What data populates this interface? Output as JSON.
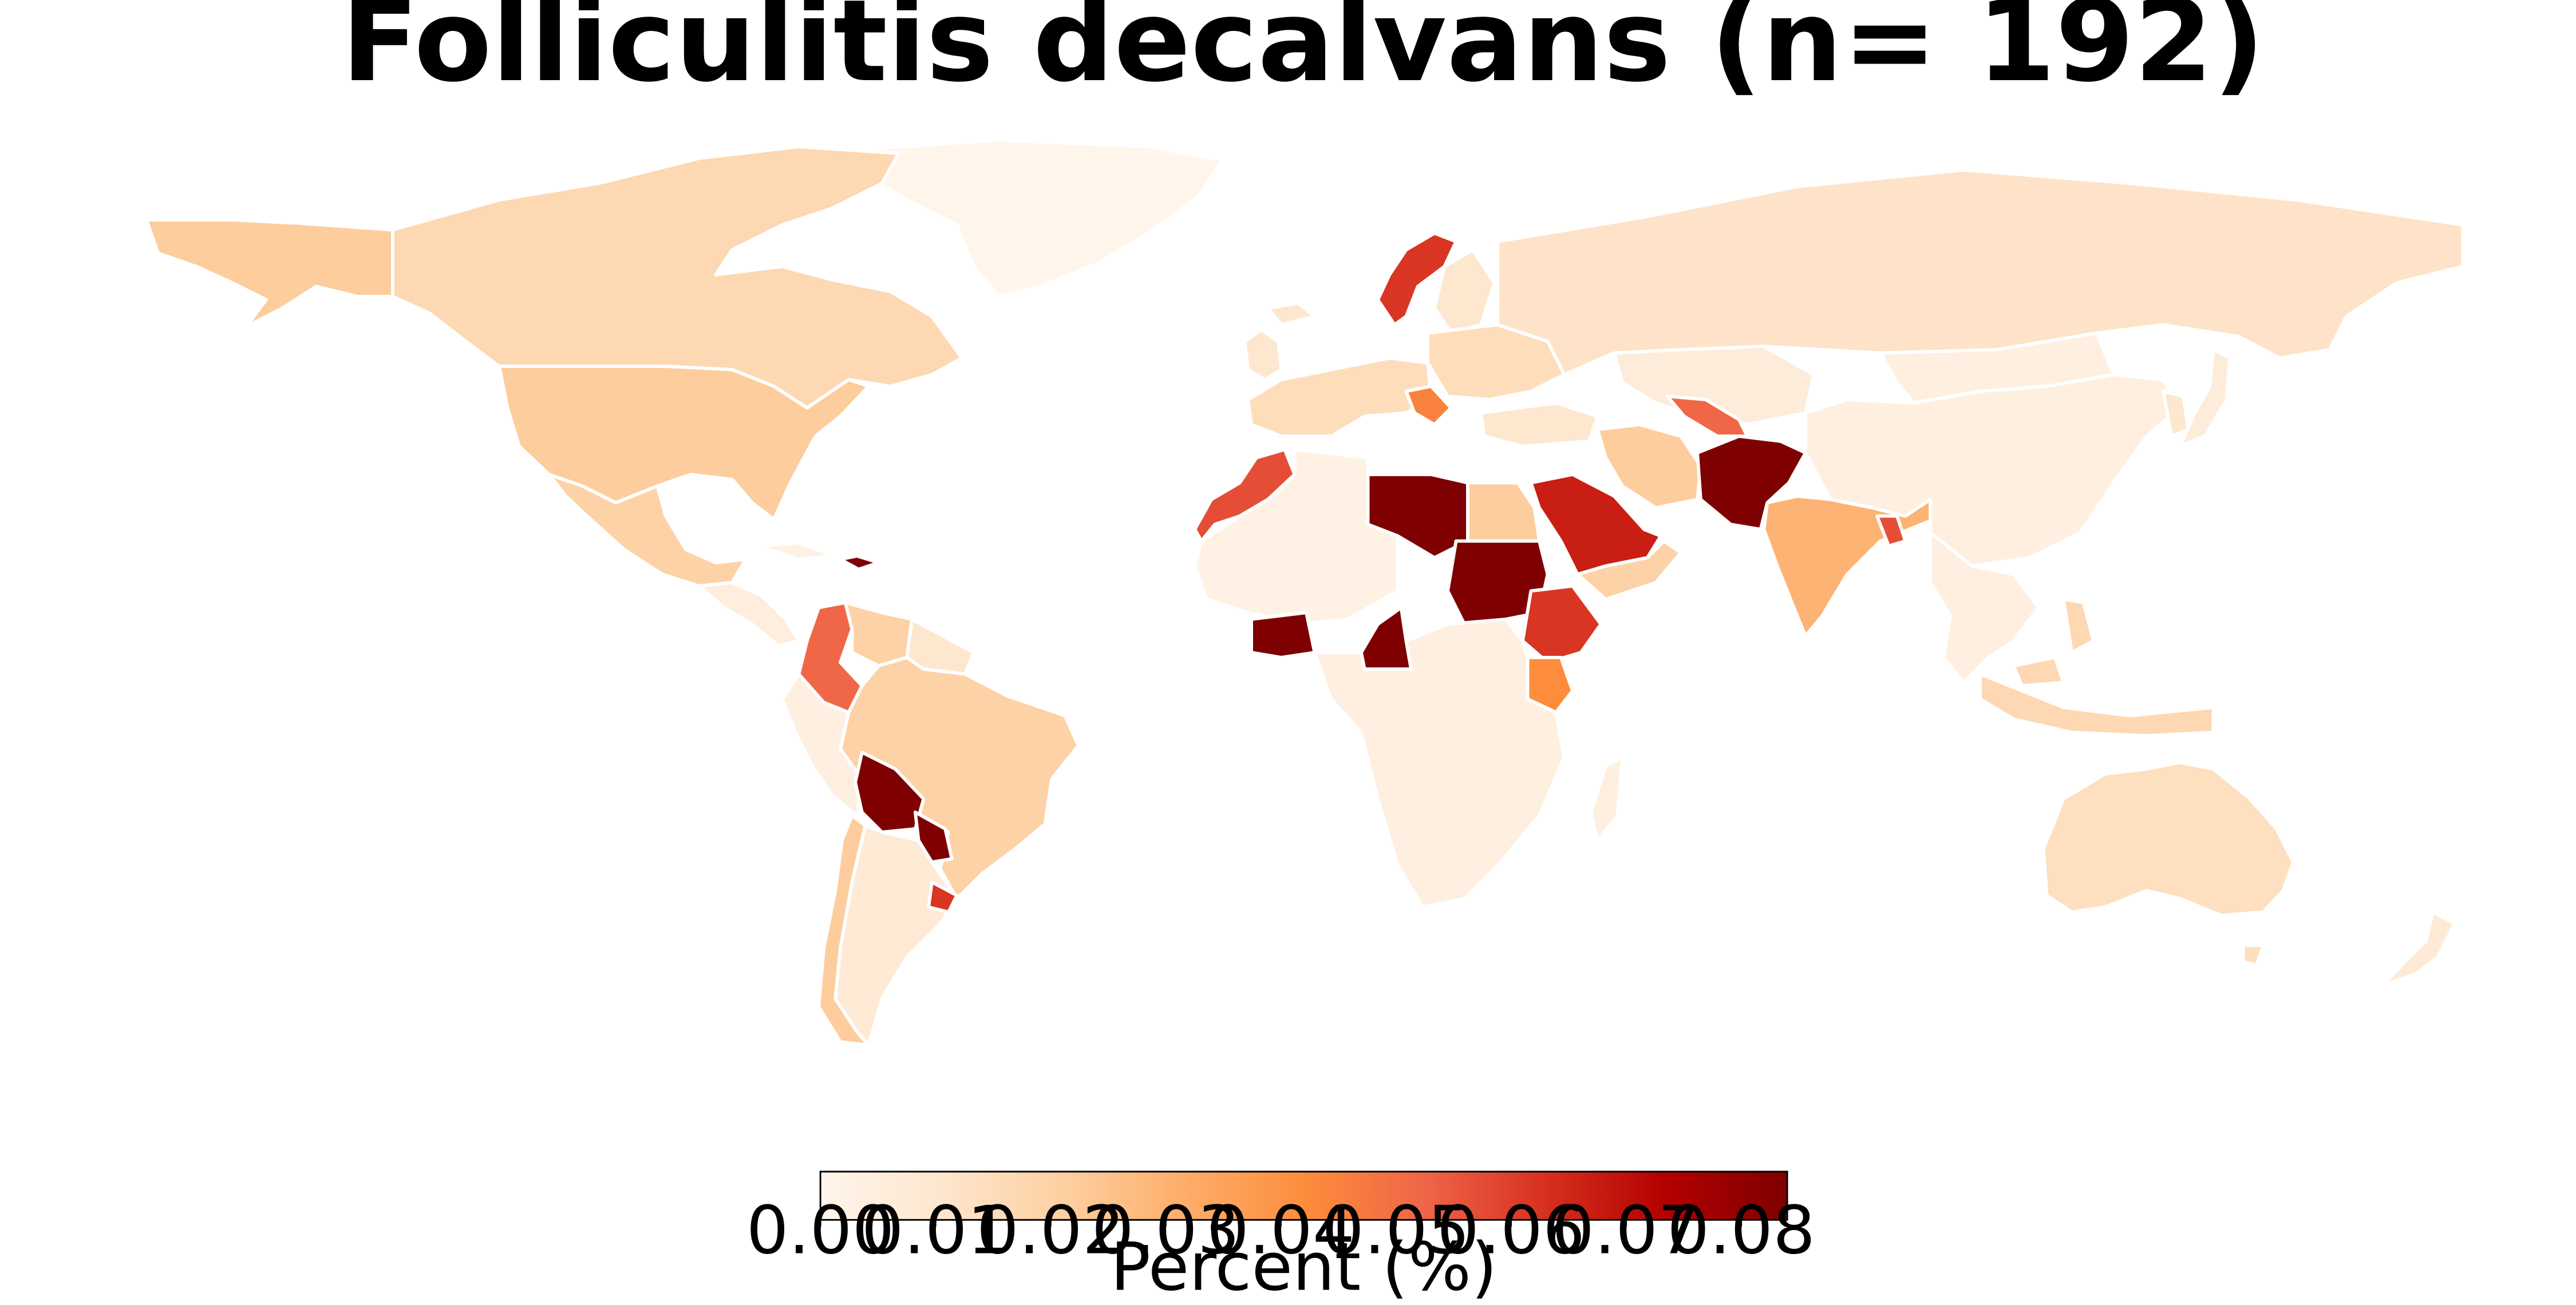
{
  "title": "Folliculitis decalvans (n= 192)",
  "colorbar": {
    "label": "Percent (%)",
    "min": 0,
    "max": 0.084,
    "ticks": [
      "0.00",
      "0.01",
      "0.02",
      "0.03",
      "0.04",
      "0.05",
      "0.06",
      "0.07",
      "0.08"
    ],
    "tick_values": [
      0,
      0.01,
      0.02,
      0.03,
      0.04,
      0.05,
      0.06,
      0.07,
      0.08
    ],
    "colormap": [
      "#fff5eb",
      "#fee6ce",
      "#fdd0a2",
      "#fdae6b",
      "#fd8d3c",
      "#f16913",
      "#d94801",
      "#b30000",
      "#7f0000"
    ],
    "colormap_name": "OrRd-like (white → dark red)"
  },
  "chart_data": {
    "type": "choropleth",
    "title": "Folliculitis decalvans (n= 192)",
    "value_label": "Percent (%)",
    "range": [
      0,
      0.084
    ],
    "regions": [
      {
        "name": "Greenland",
        "value": 0.0
      },
      {
        "name": "Canada",
        "value": 0.017
      },
      {
        "name": "Alaska",
        "value": 0.022
      },
      {
        "name": "United States",
        "value": 0.022
      },
      {
        "name": "Mexico",
        "value": 0.02
      },
      {
        "name": "Central America",
        "value": 0.005
      },
      {
        "name": "Cuba",
        "value": 0.002
      },
      {
        "name": "Haiti / Dominican Republic",
        "value": 0.084
      },
      {
        "name": "Colombia",
        "value": 0.052
      },
      {
        "name": "Venezuela",
        "value": 0.02
      },
      {
        "name": "Guyana region",
        "value": 0.01
      },
      {
        "name": "Ecuador / Peru",
        "value": 0.004
      },
      {
        "name": "Brazil",
        "value": 0.02
      },
      {
        "name": "Bolivia",
        "value": 0.084
      },
      {
        "name": "Paraguay",
        "value": 0.084
      },
      {
        "name": "Argentina",
        "value": 0.008
      },
      {
        "name": "Chile",
        "value": 0.022
      },
      {
        "name": "Uruguay",
        "value": 0.062
      },
      {
        "name": "Iceland",
        "value": 0.01
      },
      {
        "name": "United Kingdom / Ireland",
        "value": 0.01
      },
      {
        "name": "Western Europe",
        "value": 0.015
      },
      {
        "name": "Scandinavia (Sweden)",
        "value": 0.062
      },
      {
        "name": "Finland",
        "value": 0.01
      },
      {
        "name": "Eastern Europe",
        "value": 0.015
      },
      {
        "name": "Balkans",
        "value": 0.045
      },
      {
        "name": "Russia",
        "value": 0.012
      },
      {
        "name": "Kazakhstan / Central Asia",
        "value": 0.006
      },
      {
        "name": "Uzbekistan / Turkmenistan",
        "value": 0.052
      },
      {
        "name": "Turkey",
        "value": 0.01
      },
      {
        "name": "Iran",
        "value": 0.022
      },
      {
        "name": "Afghanistan / Pakistan",
        "value": 0.084
      },
      {
        "name": "Saudi Arabia",
        "value": 0.067
      },
      {
        "name": "Yemen / Oman",
        "value": 0.02
      },
      {
        "name": "Egypt",
        "value": 0.022
      },
      {
        "name": "Libya",
        "value": 0.084
      },
      {
        "name": "Morocco",
        "value": 0.057
      },
      {
        "name": "Northwest Africa",
        "value": 0.002
      },
      {
        "name": "Sudan",
        "value": 0.084
      },
      {
        "name": "Ethiopia",
        "value": 0.062
      },
      {
        "name": "Kenya",
        "value": 0.042
      },
      {
        "name": "Ghana / Côte d'Ivoire",
        "value": 0.084
      },
      {
        "name": "Cameroon",
        "value": 0.084
      },
      {
        "name": "Central & Southern Africa",
        "value": 0.004
      },
      {
        "name": "Madagascar",
        "value": 0.004
      },
      {
        "name": "India",
        "value": 0.03
      },
      {
        "name": "Bangladesh",
        "value": 0.057
      },
      {
        "name": "China",
        "value": 0.004
      },
      {
        "name": "Mongolia",
        "value": 0.004
      },
      {
        "name": "Japan",
        "value": 0.006
      },
      {
        "name": "Korea",
        "value": 0.01
      },
      {
        "name": "Southeast Asia",
        "value": 0.004
      },
      {
        "name": "Indonesia / Philippines",
        "value": 0.017
      },
      {
        "name": "Australia",
        "value": 0.014
      },
      {
        "name": "New Zealand",
        "value": 0.008
      }
    ]
  }
}
